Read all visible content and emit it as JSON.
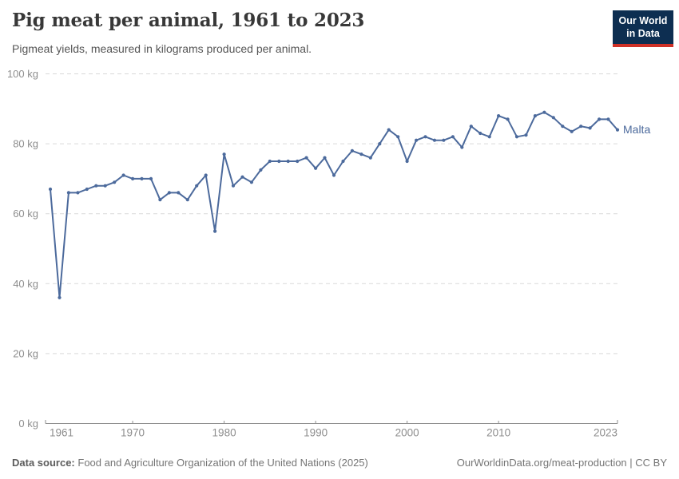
{
  "header": {
    "title": "Pig meat per animal, 1961 to 2023",
    "subtitle": "Pigmeat yields, measured in kilograms produced per animal.",
    "logo": {
      "line1": "Our World",
      "line2": "in Data",
      "bg_color": "#0d2e51",
      "stripe_color": "#cf3127"
    }
  },
  "chart_data": {
    "type": "line",
    "title": "Pig meat per animal, 1961 to 2023",
    "subtitle": "Pigmeat yields, measured in kilograms produced per animal.",
    "xlabel": "",
    "ylabel": "kilograms produced per animal",
    "x_range": [
      1961,
      2023
    ],
    "ylim": [
      0,
      100
    ],
    "grid": "horizontal-dashed",
    "legend_position": "end-of-line-label",
    "yticks": [
      0,
      20,
      40,
      60,
      80,
      100
    ],
    "ytick_labels": [
      "0 kg",
      "20 kg",
      "40 kg",
      "60 kg",
      "80 kg",
      "100 kg"
    ],
    "xticks": [
      1961,
      1970,
      1980,
      1990,
      2000,
      2010,
      2023
    ],
    "xtick_labels": [
      "1961",
      "1970",
      "1980",
      "1990",
      "2000",
      "2010",
      "2023"
    ],
    "colors": {
      "grid": "#d9d9d9",
      "axis": "#8f8f8f",
      "tick_text": "#8e8e8e"
    },
    "series": [
      {
        "name": "Malta",
        "color": "#4c6a9c",
        "start_year": 1961,
        "annual": true,
        "values": [
          67,
          36,
          66,
          66,
          67,
          68,
          68,
          69,
          71,
          70,
          70,
          70,
          64,
          66,
          66,
          64,
          68,
          71,
          55,
          77,
          68,
          70.5,
          69,
          72.5,
          75,
          75,
          75,
          75,
          76,
          73,
          76,
          71,
          75,
          78,
          77,
          76,
          80,
          84,
          82,
          75,
          81,
          82,
          81,
          81,
          82,
          79,
          85,
          83,
          82,
          88,
          87,
          82,
          82.5,
          88,
          89,
          87.5,
          85,
          83.5,
          85,
          84.5,
          87,
          87,
          84
        ]
      }
    ]
  },
  "footer": {
    "source_label": "Data source:",
    "source_text": "Food and Agriculture Organization of the United Nations (2025)",
    "link_text": "OurWorldinData.org/meat-production | CC BY"
  }
}
